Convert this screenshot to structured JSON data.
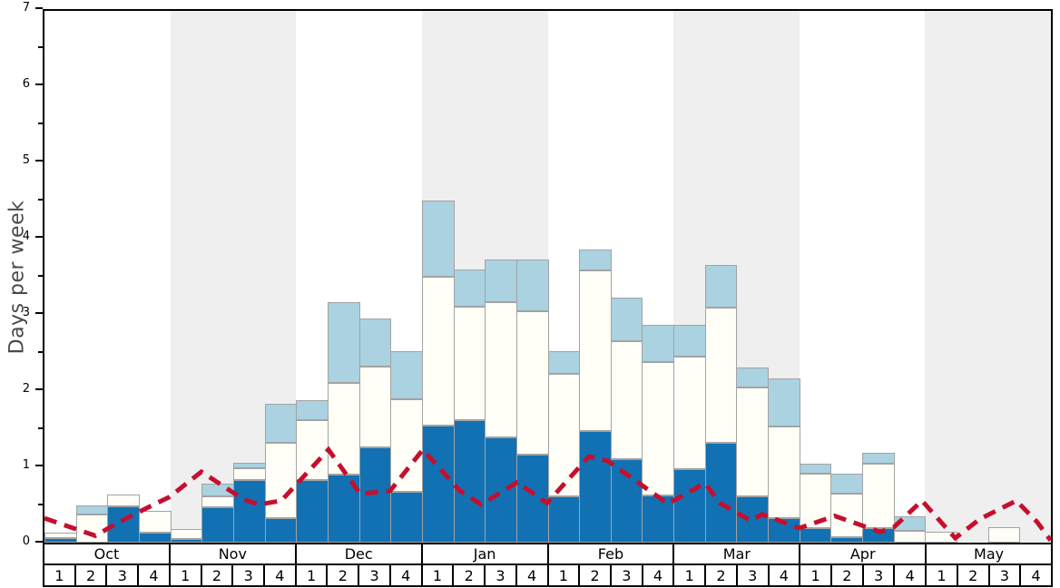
{
  "ylabel": "Days per week",
  "y_ticks": [
    "0",
    "1",
    "2",
    "3",
    "4",
    "5",
    "6",
    "7"
  ],
  "months": [
    "Oct",
    "Nov",
    "Dec",
    "Jan",
    "Feb",
    "Mar",
    "Apr",
    "May"
  ],
  "week_labels": [
    "1",
    "2",
    "3",
    "4"
  ],
  "colors": {
    "dark_blue": "#1171b3",
    "light_blue": "#aad2e1",
    "bar_white": "#fffef7",
    "bar_border": "#a3a3a3",
    "month_stripe_gray": "#efefef",
    "line_red": "#c50f2e",
    "axis_black": "#000000",
    "ylabel_gray": "#4a4a4a"
  },
  "chart_data": {
    "type": "bar",
    "stacked": true,
    "title": "",
    "xlabel": "",
    "ylabel": "Days per week",
    "ylim": [
      0,
      7
    ],
    "grid": false,
    "legend": "none",
    "categories": [
      "Oct-1",
      "Oct-2",
      "Oct-3",
      "Oct-4",
      "Nov-1",
      "Nov-2",
      "Nov-3",
      "Nov-4",
      "Dec-1",
      "Dec-2",
      "Dec-3",
      "Dec-4",
      "Jan-1",
      "Jan-2",
      "Jan-3",
      "Jan-4",
      "Feb-1",
      "Feb-2",
      "Feb-3",
      "Feb-4",
      "Mar-1",
      "Mar-2",
      "Mar-3",
      "Mar-4",
      "Apr-1",
      "Apr-2",
      "Apr-3",
      "Apr-4",
      "May-1",
      "May-2",
      "May-3",
      "May-4"
    ],
    "shaded_month_indexes": [
      1,
      3,
      5,
      7
    ],
    "series": [
      {
        "name": "dark-blue-segment",
        "color": "#1171b3",
        "values": [
          0.06,
          0.0,
          0.48,
          0.13,
          0.05,
          0.46,
          0.82,
          0.32,
          0.82,
          0.89,
          1.25,
          0.67,
          1.53,
          1.61,
          1.38,
          1.16,
          0.61,
          1.46,
          1.1,
          0.62,
          0.97,
          1.31,
          0.61,
          0.32,
          0.19,
          0.07,
          0.19,
          0.0,
          0.0,
          0.0,
          0.0,
          0.0
        ]
      },
      {
        "name": "white-segment",
        "color": "#fffef7",
        "values": [
          0.07,
          0.37,
          0.15,
          0.29,
          0.13,
          0.15,
          0.16,
          0.99,
          0.79,
          1.2,
          1.06,
          1.21,
          1.96,
          1.48,
          1.77,
          1.87,
          1.6,
          2.11,
          1.54,
          1.75,
          1.47,
          1.77,
          1.43,
          1.2,
          0.71,
          0.57,
          0.85,
          0.16,
          0.14,
          0.0,
          0.2,
          0.0
        ]
      },
      {
        "name": "light-blue-segment",
        "color": "#aad2e1",
        "values": [
          0.0,
          0.12,
          0.0,
          0.0,
          0.0,
          0.16,
          0.07,
          0.51,
          0.26,
          1.06,
          0.63,
          0.63,
          1.0,
          0.49,
          0.56,
          0.68,
          0.3,
          0.28,
          0.58,
          0.49,
          0.42,
          0.56,
          0.26,
          0.64,
          0.14,
          0.26,
          0.14,
          0.18,
          0.0,
          0.0,
          0.0,
          0.0
        ]
      }
    ],
    "line": {
      "name": "red-dashed-trend-line",
      "color": "#c50f2e",
      "style": "dashed",
      "x_unit": "weeks-from-left (32 weeks total)",
      "points": [
        [
          0,
          0.32
        ],
        [
          1.62,
          0.09
        ],
        [
          2.25,
          0.24
        ],
        [
          2.8,
          0.36
        ],
        [
          3.43,
          0.49
        ],
        [
          3.98,
          0.6
        ],
        [
          4.99,
          0.93
        ],
        [
          6.32,
          0.57
        ],
        [
          6.81,
          0.5
        ],
        [
          7.53,
          0.55
        ],
        [
          9.03,
          1.22
        ],
        [
          10.04,
          0.64
        ],
        [
          10.99,
          0.68
        ],
        [
          12.03,
          1.22
        ],
        [
          13.21,
          0.68
        ],
        [
          13.88,
          0.5
        ],
        [
          15.03,
          0.79
        ],
        [
          15.98,
          0.52
        ],
        [
          17.31,
          1.13
        ],
        [
          17.92,
          1.07
        ],
        [
          19.82,
          0.51
        ],
        [
          21.0,
          0.78
        ],
        [
          21.47,
          0.52
        ],
        [
          22.45,
          0.29
        ],
        [
          22.82,
          0.37
        ],
        [
          24.0,
          0.19
        ],
        [
          25.13,
          0.35
        ],
        [
          26.57,
          0.14
        ],
        [
          27.0,
          0.2
        ],
        [
          27.9,
          0.55
        ],
        [
          28.96,
          0.06
        ],
        [
          29.74,
          0.31
        ],
        [
          30.9,
          0.55
        ],
        [
          31.56,
          0.27
        ],
        [
          31.99,
          0.03
        ]
      ]
    }
  }
}
